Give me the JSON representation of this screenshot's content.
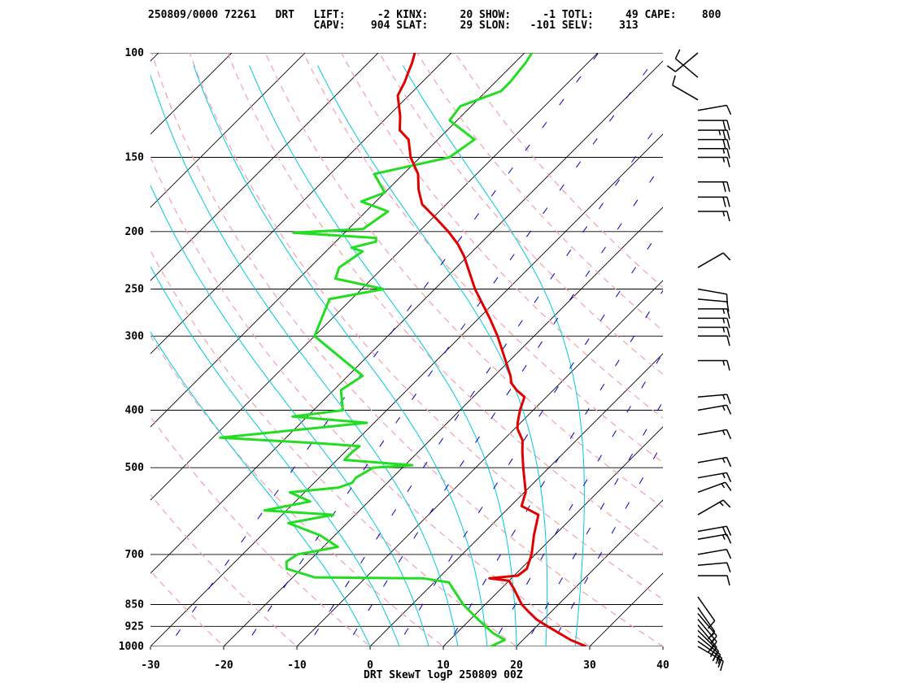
{
  "header": {
    "line1": "250809/0000 72261   DRT   LIFT:     -2 KINX:     20 SHOW:     -1 TOTL:     49 CAPE:    800",
    "line2": "                          CAPV:    904 SLAT:     29 SLON:   -101 SELV:    313"
  },
  "footer": {
    "caption": "DRT SkewT logP 250809 00Z"
  },
  "colors": {
    "temperature": "#e00000",
    "dewpoint": "#22dd22",
    "isotherm": "#000000",
    "isobar": "#000000",
    "dry_adiabat": "#f4a0a8",
    "moist_adiabat": "#00c8e0",
    "mixing_ratio": "#0000cc",
    "wind_barb": "#000000"
  },
  "chart_data": {
    "type": "line",
    "title": "",
    "xlabel": "",
    "ylabel": "",
    "x_scale": "skew-T temperature (C)",
    "y_scale": "log pressure (hPa)",
    "xlim": [
      -30,
      40
    ],
    "ylim": [
      1000,
      100
    ],
    "x_ticks": [
      -30,
      -20,
      -10,
      0,
      10,
      20,
      30,
      40
    ],
    "y_ticks": [
      1000,
      925,
      850,
      700,
      500,
      400,
      300,
      250,
      200,
      150,
      100
    ],
    "grid": true,
    "temperature": [
      [
        1000,
        29.5
      ],
      [
        975,
        26.5
      ],
      [
        950,
        24.0
      ],
      [
        925,
        21.5
      ],
      [
        900,
        19.0
      ],
      [
        875,
        17.0
      ],
      [
        850,
        15.0
      ],
      [
        800,
        11.8
      ],
      [
        775,
        10.0
      ],
      [
        768,
        7.0
      ],
      [
        760,
        10.5
      ],
      [
        740,
        10.8
      ],
      [
        700,
        9.5
      ],
      [
        650,
        7.2
      ],
      [
        600,
        5.0
      ],
      [
        580,
        1.5
      ],
      [
        550,
        0.2
      ],
      [
        500,
        -3.5
      ],
      [
        470,
        -5.8
      ],
      [
        450,
        -7.3
      ],
      [
        430,
        -9.6
      ],
      [
        420,
        -10.4
      ],
      [
        400,
        -11.8
      ],
      [
        380,
        -13.0
      ],
      [
        370,
        -15.0
      ],
      [
        360,
        -16.7
      ],
      [
        350,
        -17.8
      ],
      [
        300,
        -25.0
      ],
      [
        280,
        -28.5
      ],
      [
        250,
        -34.5
      ],
      [
        220,
        -40.5
      ],
      [
        210,
        -43.0
      ],
      [
        200,
        -46.0
      ],
      [
        190,
        -49.5
      ],
      [
        180,
        -53.3
      ],
      [
        170,
        -55.8
      ],
      [
        160,
        -58.0
      ],
      [
        150,
        -61.3
      ],
      [
        140,
        -64.0
      ],
      [
        135,
        -66.5
      ],
      [
        128,
        -68.3
      ],
      [
        118,
        -71.5
      ],
      [
        112,
        -72.4
      ],
      [
        108,
        -73.2
      ],
      [
        104,
        -74.0
      ],
      [
        100,
        -75.0
      ]
    ],
    "dewpoint": [
      [
        1000,
        16.5
      ],
      [
        975,
        17.5
      ],
      [
        950,
        15.0
      ],
      [
        900,
        11.0
      ],
      [
        850,
        7.0
      ],
      [
        780,
        2.0
      ],
      [
        768,
        -2.0
      ],
      [
        765,
        -17.0
      ],
      [
        740,
        -22.0
      ],
      [
        720,
        -23.0
      ],
      [
        700,
        -22.5
      ],
      [
        680,
        -18.0
      ],
      [
        650,
        -22.0
      ],
      [
        620,
        -28.0
      ],
      [
        600,
        -23.0
      ],
      [
        590,
        -33.0
      ],
      [
        570,
        -28.0
      ],
      [
        550,
        -32.0
      ],
      [
        540,
        -26.0
      ],
      [
        530,
        -24.8
      ],
      [
        520,
        -25.0
      ],
      [
        500,
        -24.0
      ],
      [
        495,
        -19.0
      ],
      [
        485,
        -29.0
      ],
      [
        470,
        -29.0
      ],
      [
        460,
        -28.8
      ],
      [
        455,
        -34.5
      ],
      [
        445,
        -49.0
      ],
      [
        420,
        -31.0
      ],
      [
        410,
        -42.0
      ],
      [
        400,
        -36.0
      ],
      [
        370,
        -39.0
      ],
      [
        350,
        -38.0
      ],
      [
        300,
        -50.0
      ],
      [
        260,
        -53.0
      ],
      [
        250,
        -47.0
      ],
      [
        240,
        -55.0
      ],
      [
        230,
        -56.0
      ],
      [
        216,
        -55.0
      ],
      [
        213,
        -57.0
      ],
      [
        208,
        -54.5
      ],
      [
        205,
        -55.0
      ],
      [
        201,
        -67.0
      ],
      [
        198,
        -58.0
      ],
      [
        185,
        -57.0
      ],
      [
        178,
        -62.0
      ],
      [
        172,
        -60.0
      ],
      [
        160,
        -64.0
      ],
      [
        150,
        -56.0
      ],
      [
        140,
        -55.0
      ],
      [
        130,
        -61.0
      ],
      [
        123,
        -61.5
      ],
      [
        116,
        -58.0
      ],
      [
        112,
        -58.0
      ],
      [
        104,
        -58.5
      ],
      [
        100,
        -59.0
      ]
    ],
    "dry_adiabats_theta_C": [
      -50,
      -40,
      -30,
      -20,
      -10,
      0,
      10,
      20,
      30,
      40,
      50,
      60,
      70,
      80,
      90,
      100,
      110,
      120
    ],
    "moist_adiabats_thetaw_C": [
      0,
      4,
      8,
      12,
      16,
      20,
      24,
      28
    ],
    "mixing_ratio_lines_gkg": [
      0.4,
      1,
      2,
      3,
      5,
      8,
      12,
      16,
      20
    ],
    "wind_barbs": [
      {
        "p": 1000,
        "dir": 120,
        "spd": 15
      },
      {
        "p": 980,
        "dir": 125,
        "spd": 15
      },
      {
        "p": 960,
        "dir": 130,
        "spd": 20
      },
      {
        "p": 940,
        "dir": 135,
        "spd": 20
      },
      {
        "p": 920,
        "dir": 140,
        "spd": 20
      },
      {
        "p": 900,
        "dir": 140,
        "spd": 15
      },
      {
        "p": 880,
        "dir": 140,
        "spd": 15
      },
      {
        "p": 860,
        "dir": 145,
        "spd": 10
      },
      {
        "p": 825,
        "dir": 145,
        "spd": 10
      },
      {
        "p": 760,
        "dir": 90,
        "spd": 10
      },
      {
        "p": 730,
        "dir": 85,
        "spd": 10
      },
      {
        "p": 700,
        "dir": 80,
        "spd": 10
      },
      {
        "p": 660,
        "dir": 80,
        "spd": 15
      },
      {
        "p": 640,
        "dir": 80,
        "spd": 20
      },
      {
        "p": 600,
        "dir": 60,
        "spd": 15
      },
      {
        "p": 550,
        "dir": 70,
        "spd": 15
      },
      {
        "p": 520,
        "dir": 80,
        "spd": 15
      },
      {
        "p": 490,
        "dir": 80,
        "spd": 15
      },
      {
        "p": 440,
        "dir": 80,
        "spd": 15
      },
      {
        "p": 400,
        "dir": 80,
        "spd": 15
      },
      {
        "p": 380,
        "dir": 85,
        "spd": 15
      },
      {
        "p": 330,
        "dir": 90,
        "spd": 15
      },
      {
        "p": 300,
        "dir": 90,
        "spd": 10
      },
      {
        "p": 290,
        "dir": 90,
        "spd": 15
      },
      {
        "p": 280,
        "dir": 90,
        "spd": 15
      },
      {
        "p": 270,
        "dir": 90,
        "spd": 15
      },
      {
        "p": 260,
        "dir": 95,
        "spd": 10
      },
      {
        "p": 250,
        "dir": 100,
        "spd": 10
      },
      {
        "p": 230,
        "dir": 60,
        "spd": 10
      },
      {
        "p": 185,
        "dir": 90,
        "spd": 15
      },
      {
        "p": 175,
        "dir": 90,
        "spd": 20
      },
      {
        "p": 165,
        "dir": 90,
        "spd": 20
      },
      {
        "p": 150,
        "dir": 90,
        "spd": 15
      },
      {
        "p": 145,
        "dir": 90,
        "spd": 15
      },
      {
        "p": 140,
        "dir": 90,
        "spd": 20
      },
      {
        "p": 135,
        "dir": 90,
        "spd": 25
      },
      {
        "p": 130,
        "dir": 90,
        "spd": 20
      },
      {
        "p": 125,
        "dir": 80,
        "spd": 10
      },
      {
        "p": 120,
        "dir": 300,
        "spd": 10
      },
      {
        "p": 110,
        "dir": 310,
        "spd": 10
      },
      {
        "p": 100,
        "dir": 230,
        "spd": 10
      }
    ]
  }
}
